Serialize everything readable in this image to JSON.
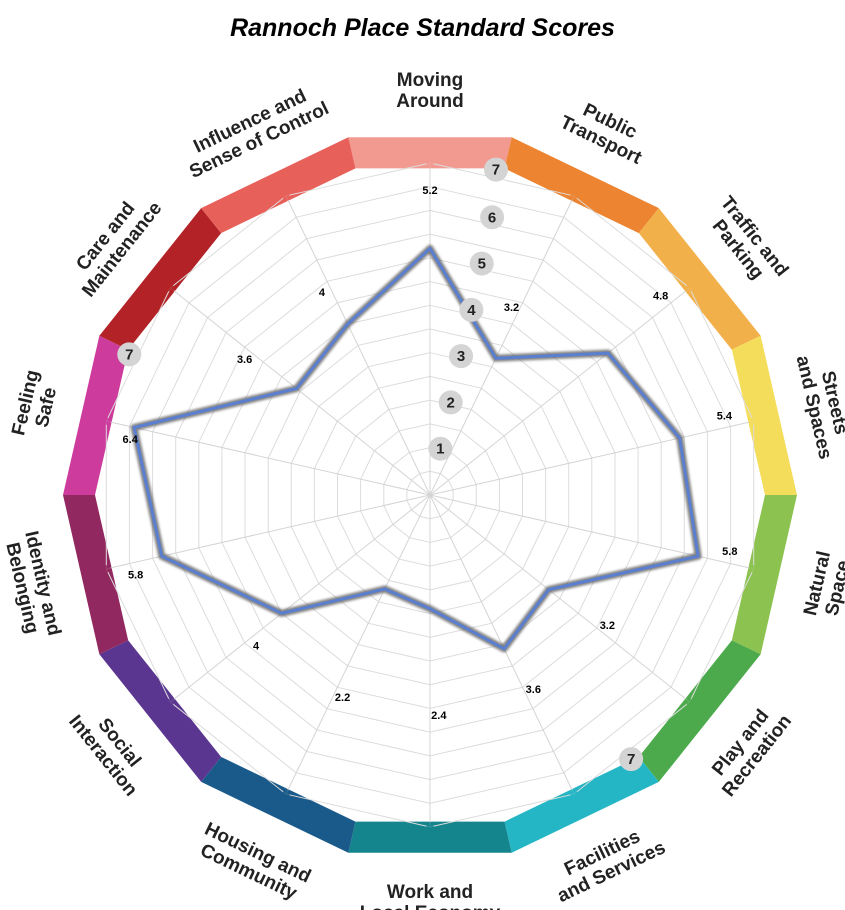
{
  "chart_data": {
    "type": "radar",
    "title": "Rannoch Place Standard Scores",
    "scale_min": 1,
    "scale_max": 7,
    "scale_ticks": [
      "1",
      "2",
      "3",
      "4",
      "5",
      "6",
      "7"
    ],
    "grid": true,
    "categories": [
      {
        "label": [
          "Moving",
          "Around"
        ],
        "value": 5.2,
        "value_text": "5.2",
        "color": "#f29a90"
      },
      {
        "label": [
          "Public",
          "Transport"
        ],
        "value": 3.2,
        "value_text": "3.2",
        "color": "#ec8431"
      },
      {
        "label": [
          "Traffic and",
          "Parking"
        ],
        "value": 4.8,
        "value_text": "4.8",
        "color": "#f2b04a"
      },
      {
        "label": [
          "Streets",
          "and Spaces"
        ],
        "value": 5.4,
        "value_text": "5.4",
        "color": "#f5dd5c"
      },
      {
        "label": [
          "Natural",
          "Space"
        ],
        "value": 5.8,
        "value_text": "5.8",
        "color": "#8cc350"
      },
      {
        "label": [
          "Play and",
          "Recreation"
        ],
        "value": 3.2,
        "value_text": "3.2",
        "color": "#4caa4c"
      },
      {
        "label": [
          "Facilities",
          "and Services"
        ],
        "value": 3.6,
        "value_text": "3.6",
        "color": "#25b6c6"
      },
      {
        "label": [
          "Work and",
          "Local Economy"
        ],
        "value": 2.4,
        "value_text": "2.4",
        "color": "#14858c"
      },
      {
        "label": [
          "Housing and",
          "Community"
        ],
        "value": 2.2,
        "value_text": "2.2",
        "color": "#1a5a8a"
      },
      {
        "label": [
          "Social",
          "Interaction"
        ],
        "value": 4.0,
        "value_text": "4",
        "color": "#5a3690"
      },
      {
        "label": [
          "Identity and",
          "Belonging"
        ],
        "value": 5.8,
        "value_text": "5.8",
        "color": "#922860"
      },
      {
        "label": [
          "Feeling",
          "Safe"
        ],
        "value": 6.4,
        "value_text": "6.4",
        "color": "#cd3c9c"
      },
      {
        "label": [
          "Care and",
          "Maintenance"
        ],
        "value": 3.6,
        "value_text": "3.6",
        "color": "#b32226"
      },
      {
        "label": [
          "Influence and",
          "Sense of Control"
        ],
        "value": 4.0,
        "value_text": "4",
        "color": "#e8605a"
      }
    ],
    "extra_scale_badges": [
      "7",
      "7",
      "7"
    ]
  }
}
